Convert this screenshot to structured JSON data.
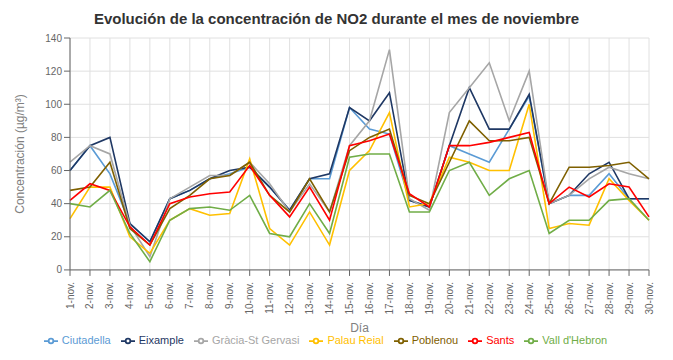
{
  "chart_data": {
    "type": "line",
    "title": "Evolución de la concentración de NO2 durante el mes de noviembre",
    "xlabel": "Día",
    "ylabel": "Concentración (µg/m³)",
    "categories": [
      "1-nov.",
      "2-nov.",
      "3-nov.",
      "4-nov.",
      "5-nov.",
      "6-nov.",
      "7-nov.",
      "8-nov.",
      "9-nov.",
      "10-nov.",
      "11-nov.",
      "12-nov.",
      "13-nov.",
      "14-nov.",
      "15-nov.",
      "16-nov.",
      "17-nov.",
      "18-nov.",
      "19-nov.",
      "20-nov.",
      "21-nov.",
      "22-nov.",
      "23-nov.",
      "24-nov.",
      "25-nov.",
      "26-nov.",
      "27-nov.",
      "28-nov.",
      "29-nov.",
      "30-nov."
    ],
    "series": [
      {
        "name": "Ciutadella",
        "color": "#5B9BD5",
        "values": [
          60,
          75,
          58,
          28,
          17,
          43,
          48,
          55,
          58,
          62,
          50,
          36,
          55,
          55,
          98,
          85,
          82,
          42,
          38,
          75,
          70,
          65,
          85,
          105,
          40,
          45,
          45,
          58,
          43,
          43
        ]
      },
      {
        "name": "Eixample",
        "color": "#1F3864",
        "values": [
          60,
          75,
          80,
          28,
          17,
          43,
          48,
          55,
          60,
          62,
          50,
          36,
          55,
          58,
          98,
          90,
          107,
          42,
          38,
          75,
          110,
          85,
          85,
          106,
          40,
          45,
          58,
          65,
          43,
          43
        ]
      },
      {
        "name": "Gràcia-St Gervasi",
        "color": "#A6A6A6",
        "values": [
          65,
          75,
          70,
          27,
          8,
          43,
          50,
          57,
          57,
          65,
          52,
          35,
          52,
          35,
          75,
          90,
          133,
          43,
          36,
          95,
          110,
          125,
          90,
          120,
          40,
          45,
          55,
          62,
          58,
          55
        ]
      },
      {
        "name": "Palau Reial",
        "color": "#FFC000",
        "values": [
          31,
          50,
          50,
          20,
          10,
          30,
          37,
          33,
          34,
          67,
          25,
          15,
          35,
          15,
          60,
          72,
          95,
          38,
          40,
          68,
          65,
          60,
          60,
          100,
          25,
          28,
          27,
          55,
          42,
          30
        ]
      },
      {
        "name": "Poblenou",
        "color": "#7F6000",
        "values": [
          48,
          50,
          65,
          25,
          15,
          37,
          45,
          55,
          57,
          65,
          45,
          35,
          55,
          35,
          72,
          80,
          85,
          45,
          40,
          65,
          90,
          78,
          78,
          80,
          40,
          62,
          62,
          63,
          65,
          55
        ]
      },
      {
        "name": "Sants",
        "color": "#FF0000",
        "values": [
          42,
          52,
          48,
          26,
          15,
          40,
          44,
          46,
          47,
          63,
          45,
          32,
          50,
          30,
          75,
          78,
          82,
          46,
          38,
          75,
          75,
          77,
          80,
          83,
          40,
          50,
          44,
          52,
          50,
          32
        ]
      },
      {
        "name": "Vall d'Hebron",
        "color": "#70AD47",
        "values": [
          40,
          38,
          48,
          22,
          5,
          30,
          37,
          38,
          36,
          45,
          22,
          20,
          40,
          22,
          68,
          70,
          70,
          35,
          35,
          60,
          65,
          45,
          55,
          60,
          22,
          30,
          30,
          42,
          43,
          30
        ]
      }
    ],
    "ylim": [
      0,
      140
    ],
    "yticks": [
      0,
      20,
      40,
      60,
      80,
      100,
      120,
      140
    ],
    "grid": true,
    "legend": "bottom"
  }
}
